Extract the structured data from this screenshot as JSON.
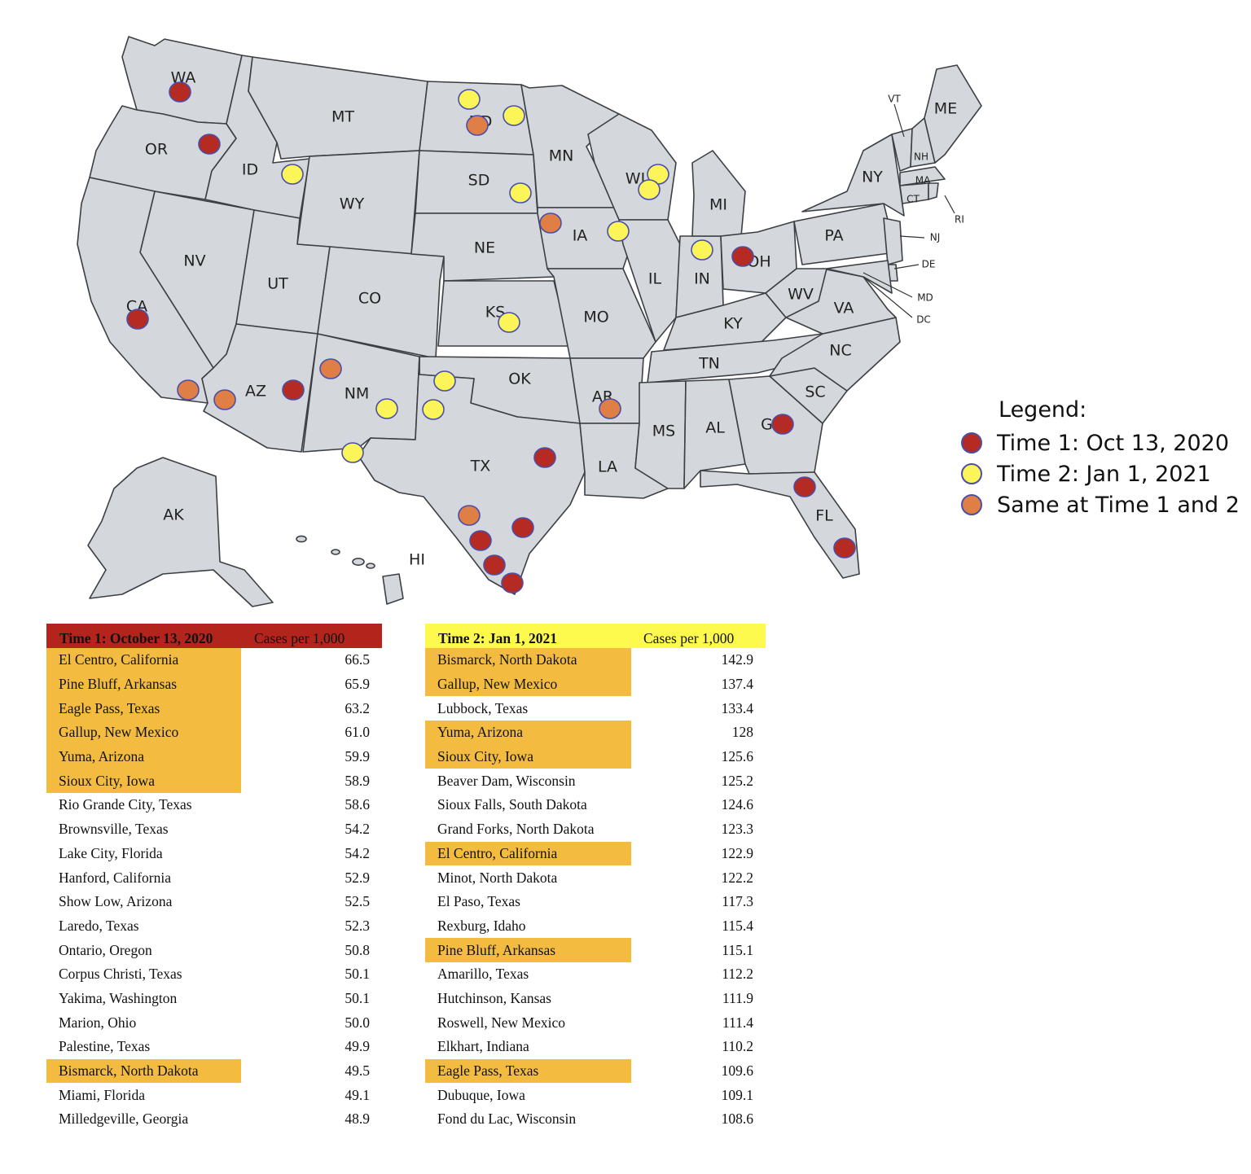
{
  "map": {
    "state_labels": [
      "WA",
      "OR",
      "ID",
      "MT",
      "WY",
      "NV",
      "UT",
      "CO",
      "CA",
      "AZ",
      "NM",
      "ND",
      "SD",
      "NE",
      "KS",
      "OK",
      "TX",
      "MN",
      "IA",
      "MO",
      "AR",
      "LA",
      "WI",
      "IL",
      "IN",
      "MI",
      "OH",
      "KY",
      "TN",
      "MS",
      "AL",
      "GA",
      "FL",
      "SC",
      "NC",
      "VA",
      "WV",
      "PA",
      "NY",
      "VT",
      "NH",
      "ME",
      "MA",
      "CT",
      "RI",
      "NJ",
      "DE",
      "MD",
      "DC",
      "AK",
      "HI"
    ],
    "colors": {
      "time1": "#b52a22",
      "time2": "#fcf55a",
      "same": "#e07f45",
      "state_fill": "#d4d8dc",
      "state_border": "#3c3f44"
    },
    "markers": [
      {
        "category": "time1",
        "state": "WA"
      },
      {
        "category": "time1",
        "state": "OR"
      },
      {
        "category": "time2",
        "state": "ID"
      },
      {
        "category": "time2",
        "state": "ND"
      },
      {
        "category": "same",
        "state": "ND"
      },
      {
        "category": "time2",
        "state": "ND"
      },
      {
        "category": "time2",
        "state": "SD"
      },
      {
        "category": "time2",
        "state": "WI"
      },
      {
        "category": "time2",
        "state": "WI"
      },
      {
        "category": "same",
        "state": "IA"
      },
      {
        "category": "time2",
        "state": "IA"
      },
      {
        "category": "time2",
        "state": "IN"
      },
      {
        "category": "time1",
        "state": "OH"
      },
      {
        "category": "time2",
        "state": "KS"
      },
      {
        "category": "time1",
        "state": "CA"
      },
      {
        "category": "same",
        "state": "CA"
      },
      {
        "category": "same",
        "state": "AZ"
      },
      {
        "category": "time1",
        "state": "AZ"
      },
      {
        "category": "same",
        "state": "NM"
      },
      {
        "category": "time2",
        "state": "NM"
      },
      {
        "category": "time2",
        "state": "TX"
      },
      {
        "category": "time2",
        "state": "TX"
      },
      {
        "category": "time2",
        "state": "TX"
      },
      {
        "category": "time1",
        "state": "TX"
      },
      {
        "category": "same",
        "state": "AR"
      },
      {
        "category": "time1",
        "state": "GA"
      },
      {
        "category": "time1",
        "state": "FL"
      },
      {
        "category": "time1",
        "state": "FL"
      },
      {
        "category": "same",
        "state": "TX"
      },
      {
        "category": "time1",
        "state": "TX"
      },
      {
        "category": "time1",
        "state": "TX"
      },
      {
        "category": "time1",
        "state": "TX"
      },
      {
        "category": "time1",
        "state": "TX"
      }
    ]
  },
  "legend": {
    "title": "Legend:",
    "items": [
      {
        "label": "Time 1: Oct 13, 2020",
        "color": "#b52a22"
      },
      {
        "label": "Time 2: Jan 1, 2021",
        "color": "#fcf55a"
      },
      {
        "label": "Same at Time 1 and 2",
        "color": "#e07f45"
      }
    ]
  },
  "table1": {
    "title": "Time 1: October 13, 2020",
    "value_header": "Cases per 1,000",
    "header_color": "#b3241c",
    "highlight_color": "#f3bc41",
    "rows": [
      {
        "name": "El Centro, California",
        "value": "66.5",
        "highlight": true
      },
      {
        "name": "Pine Bluff, Arkansas",
        "value": "65.9",
        "highlight": true
      },
      {
        "name": "Eagle Pass, Texas",
        "value": "63.2",
        "highlight": true
      },
      {
        "name": "Gallup, New Mexico",
        "value": "61.0",
        "highlight": true
      },
      {
        "name": "Yuma, Arizona",
        "value": "59.9",
        "highlight": true
      },
      {
        "name": "Sioux City, Iowa",
        "value": "58.9",
        "highlight": true
      },
      {
        "name": "Rio Grande City, Texas",
        "value": "58.6",
        "highlight": false
      },
      {
        "name": "Brownsville, Texas",
        "value": "54.2",
        "highlight": false
      },
      {
        "name": "Lake City, Florida",
        "value": "54.2",
        "highlight": false
      },
      {
        "name": "Hanford, California",
        "value": "52.9",
        "highlight": false
      },
      {
        "name": "Show Low, Arizona",
        "value": "52.5",
        "highlight": false
      },
      {
        "name": "Laredo, Texas",
        "value": "52.3",
        "highlight": false
      },
      {
        "name": "Ontario, Oregon",
        "value": "50.8",
        "highlight": false
      },
      {
        "name": "Corpus Christi, Texas",
        "value": "50.1",
        "highlight": false
      },
      {
        "name": "Yakima, Washington",
        "value": "50.1",
        "highlight": false
      },
      {
        "name": "Marion, Ohio",
        "value": "50.0",
        "highlight": false
      },
      {
        "name": "Palestine, Texas",
        "value": "49.9",
        "highlight": false
      },
      {
        "name": "Bismarck, North Dakota",
        "value": "49.5",
        "highlight": true
      },
      {
        "name": "Miami, Florida",
        "value": "49.1",
        "highlight": false
      },
      {
        "name": "Milledgeville, Georgia",
        "value": "48.9",
        "highlight": false
      }
    ]
  },
  "table2": {
    "title": "Time 2: Jan 1, 2021",
    "value_header": "Cases per 1,000",
    "header_color": "#fefa4d",
    "highlight_color": "#f3bc41",
    "rows": [
      {
        "name": "Bismarck, North Dakota",
        "value": "142.9",
        "highlight": true
      },
      {
        "name": "Gallup, New Mexico",
        "value": "137.4",
        "highlight": true
      },
      {
        "name": "Lubbock, Texas",
        "value": "133.4",
        "highlight": false
      },
      {
        "name": "Yuma, Arizona",
        "value": "128",
        "highlight": true
      },
      {
        "name": "Sioux City, Iowa",
        "value": "125.6",
        "highlight": true
      },
      {
        "name": "Beaver Dam, Wisconsin",
        "value": "125.2",
        "highlight": false
      },
      {
        "name": "Sioux Falls, South Dakota",
        "value": "124.6",
        "highlight": false
      },
      {
        "name": "Grand Forks, North Dakota",
        "value": "123.3",
        "highlight": false
      },
      {
        "name": "El Centro, California",
        "value": "122.9",
        "highlight": true
      },
      {
        "name": "Minot, North Dakota",
        "value": "122.2",
        "highlight": false
      },
      {
        "name": "El Paso, Texas",
        "value": "117.3",
        "highlight": false
      },
      {
        "name": "Rexburg, Idaho",
        "value": "115.4",
        "highlight": false
      },
      {
        "name": "Pine Bluff, Arkansas",
        "value": "115.1",
        "highlight": true
      },
      {
        "name": "Amarillo, Texas",
        "value": "112.2",
        "highlight": false
      },
      {
        "name": "Hutchinson, Kansas",
        "value": "111.9",
        "highlight": false
      },
      {
        "name": "Roswell, New Mexico",
        "value": "111.4",
        "highlight": false
      },
      {
        "name": "Elkhart, Indiana",
        "value": "110.2",
        "highlight": false
      },
      {
        "name": "Eagle Pass, Texas",
        "value": "109.6",
        "highlight": true
      },
      {
        "name": "Dubuque, Iowa",
        "value": "109.1",
        "highlight": false
      },
      {
        "name": "Fond du Lac, Wisconsin",
        "value": "108.6",
        "highlight": false
      }
    ]
  }
}
